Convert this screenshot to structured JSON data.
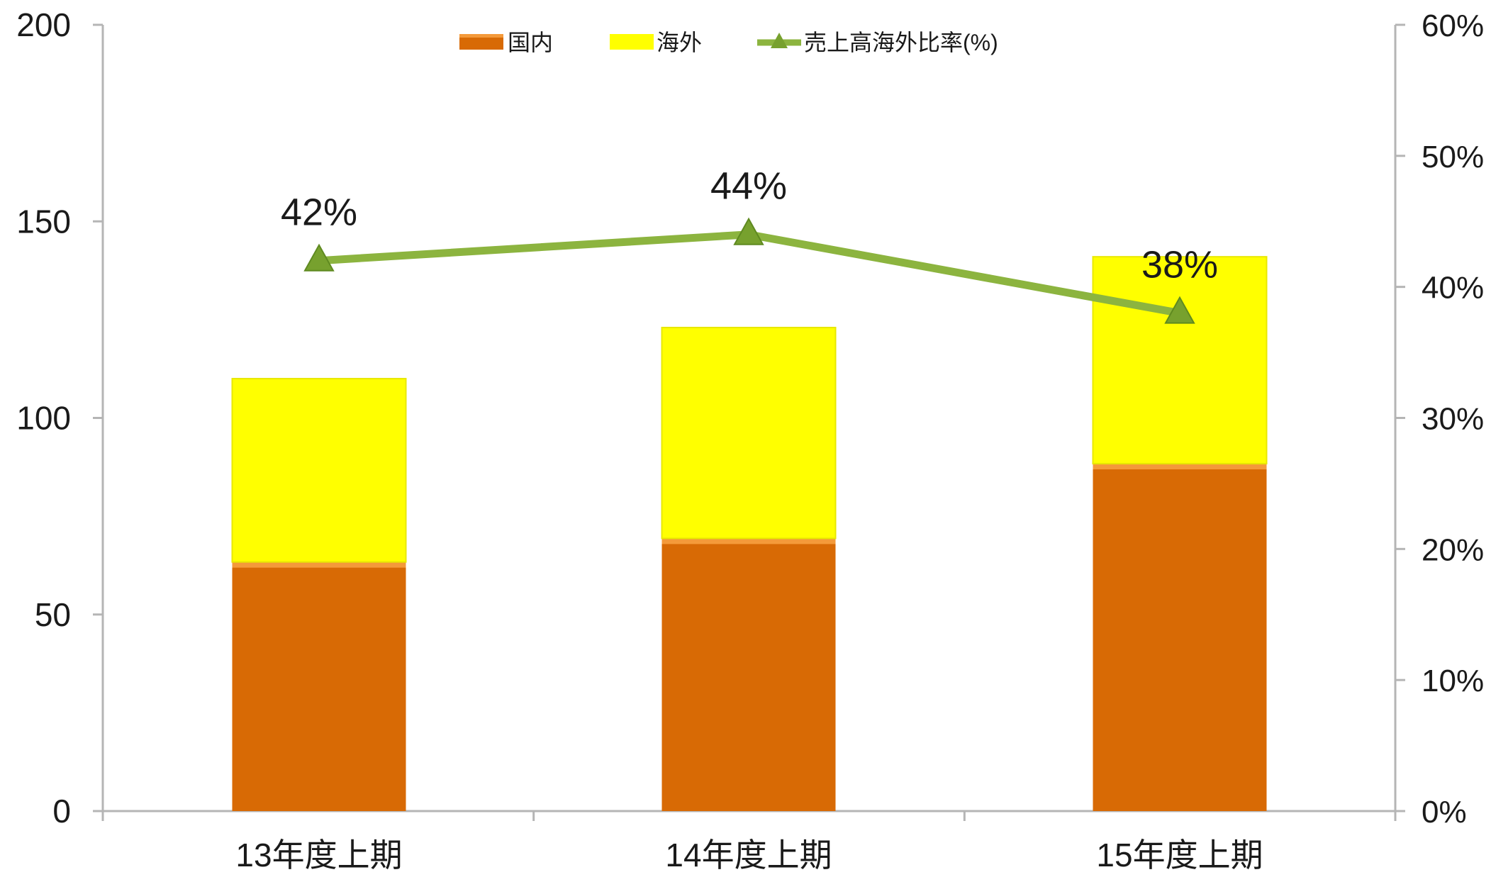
{
  "chart_data": {
    "type": "bar",
    "stacked": true,
    "categories": [
      "13年度上期",
      "14年度上期",
      "15年度上期"
    ],
    "series": [
      {
        "name": "国内",
        "type": "bar",
        "axis": "left",
        "values": [
          63,
          69,
          88
        ]
      },
      {
        "name": "海外",
        "type": "bar",
        "axis": "left",
        "values": [
          47,
          54,
          53
        ]
      },
      {
        "name": "売上高海外比率(%)",
        "type": "line",
        "axis": "right",
        "values": [
          42,
          44,
          38
        ]
      }
    ],
    "data_labels": [
      "42%",
      "44%",
      "38%"
    ],
    "y_left": {
      "ylim": [
        0,
        200
      ],
      "ticks": [
        "0",
        "50",
        "100",
        "150",
        "200"
      ]
    },
    "y_right": {
      "ylim": [
        0,
        60
      ],
      "ticks": [
        "0%",
        "10%",
        "20%",
        "30%",
        "40%",
        "50%",
        "60%"
      ]
    },
    "legend_position": "top-center",
    "grid": false,
    "colors": {
      "domestic": "#d86a05",
      "domestic_top": "#f49a3a",
      "overseas": "#ffff00",
      "overseas_edge": "#e8e800",
      "ratio_line": "#8cb43f",
      "ratio_marker": "#77a12e",
      "axis": "#b5b5b5"
    }
  }
}
